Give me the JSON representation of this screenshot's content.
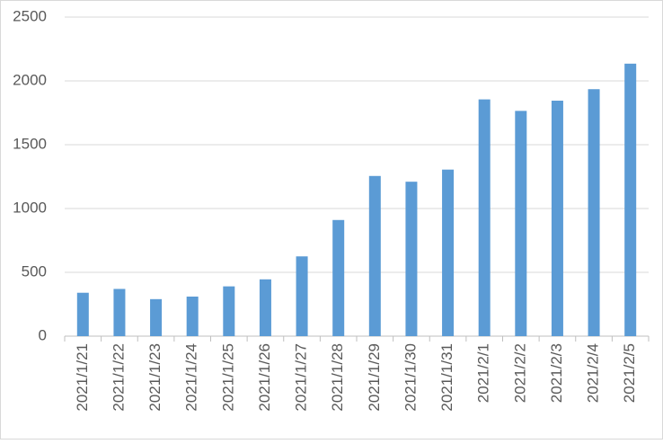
{
  "chart_data": {
    "type": "bar",
    "categories": [
      "2021/1/21",
      "2021/1/22",
      "2021/1/23",
      "2021/1/24",
      "2021/1/25",
      "2021/1/26",
      "2021/1/27",
      "2021/1/28",
      "2021/1/29",
      "2021/1/30",
      "2021/1/31",
      "2021/2/1",
      "2021/2/2",
      "2021/2/3",
      "2021/2/4",
      "2021/2/5"
    ],
    "values": [
      340,
      370,
      290,
      310,
      390,
      445,
      625,
      910,
      1255,
      1210,
      1305,
      1855,
      1765,
      1845,
      1935,
      2135
    ],
    "color": "#5b9bd5",
    "ylim": [
      0,
      2500
    ],
    "yticks": [
      0,
      500,
      1000,
      1500,
      2000,
      2500
    ],
    "grid": true
  }
}
